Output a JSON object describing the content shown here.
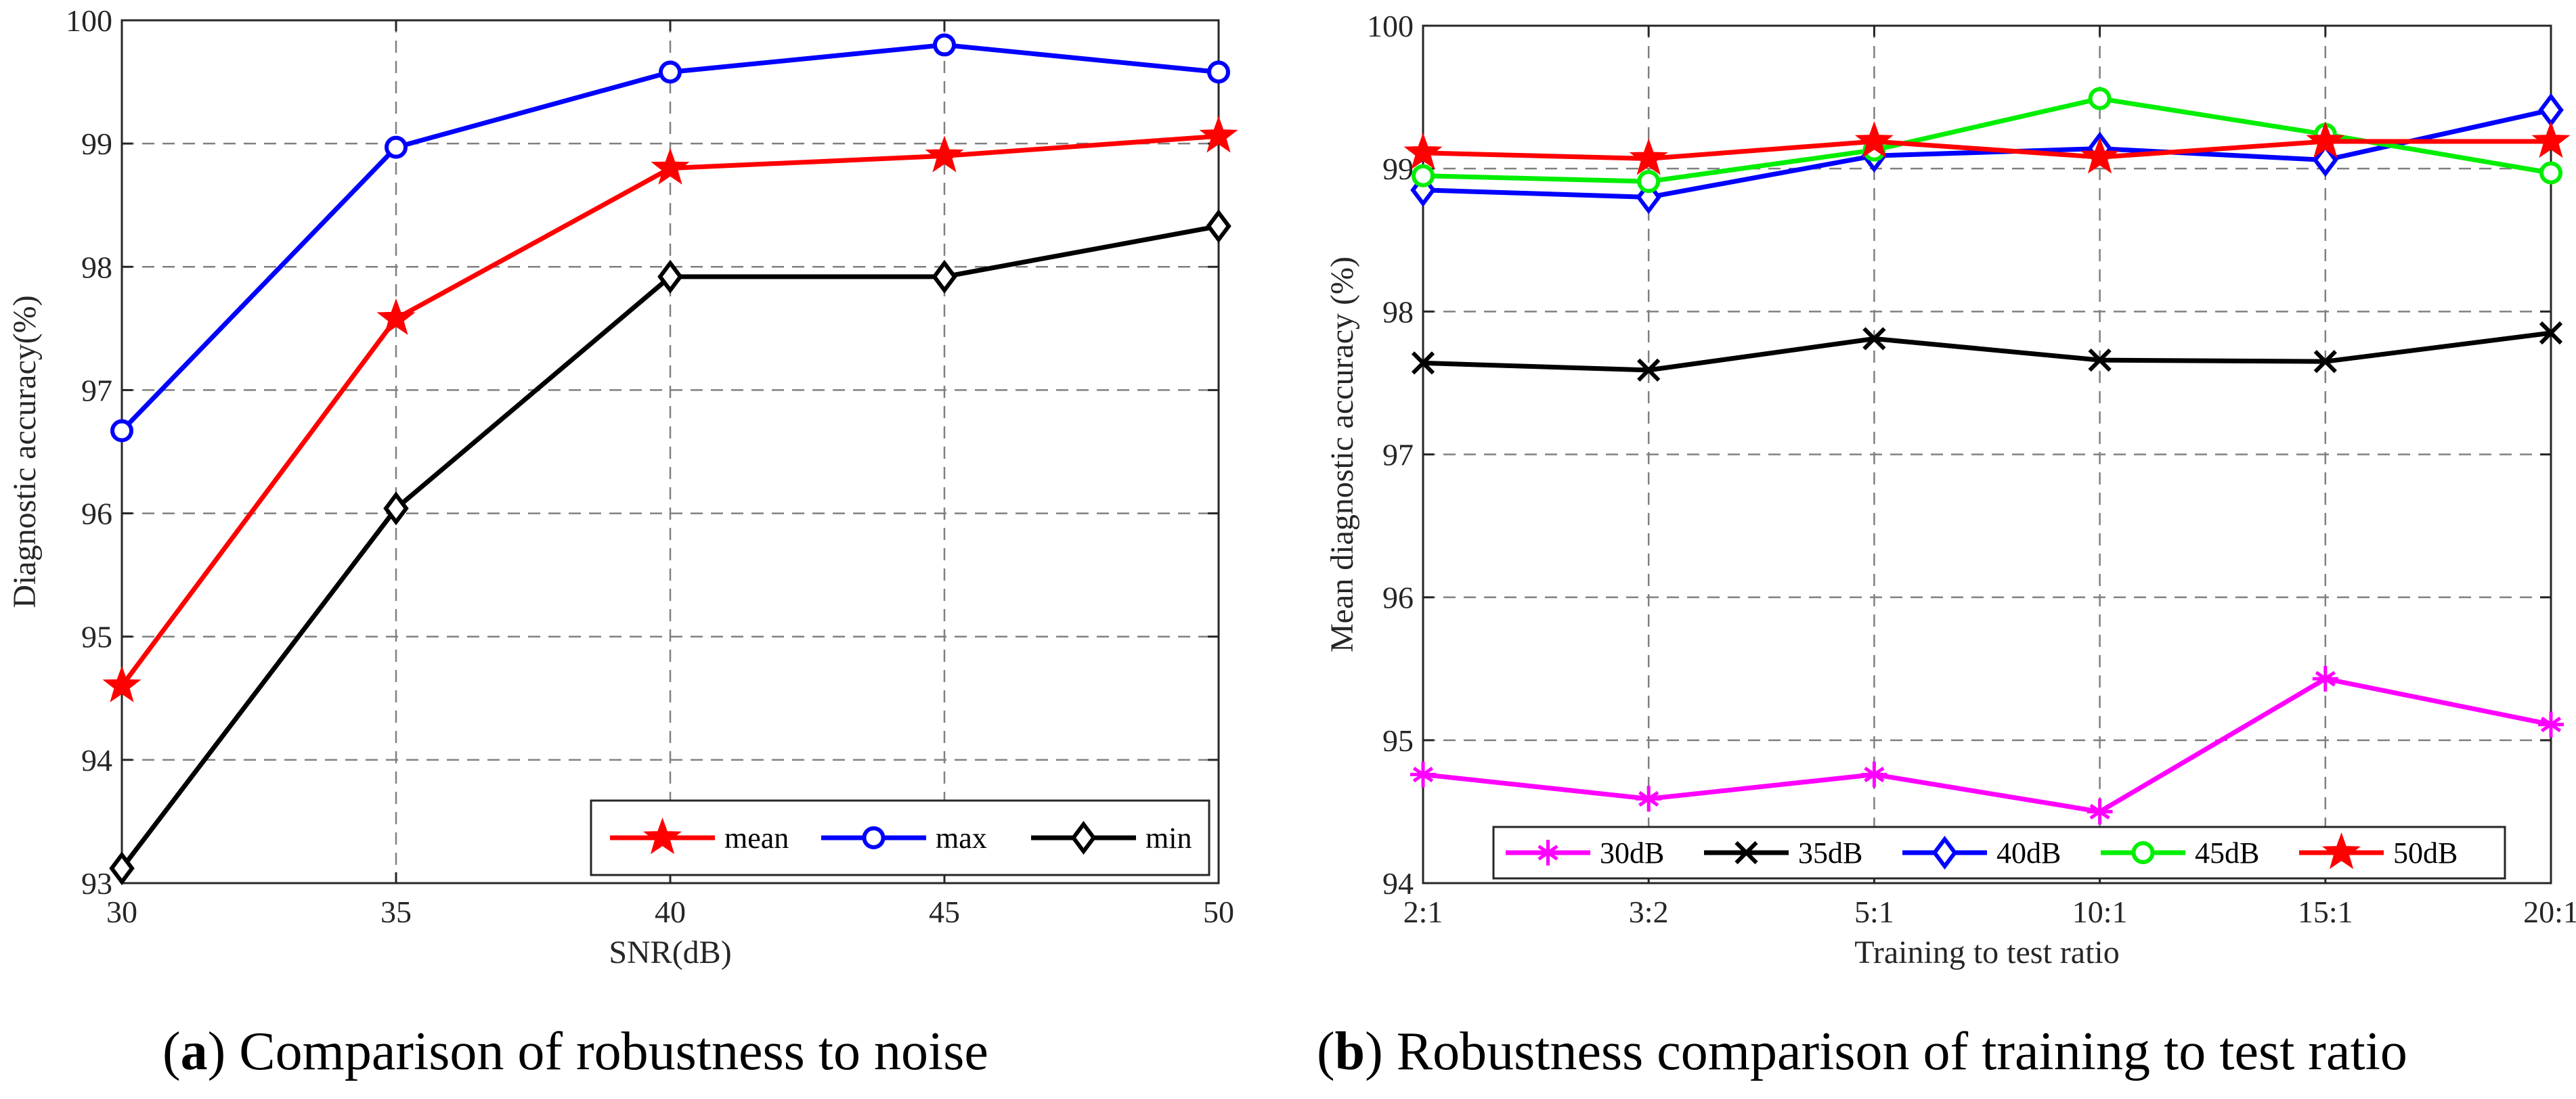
{
  "figure": {
    "captions": [
      {
        "letter": "a",
        "text": ") Comparison of robustness to noise"
      },
      {
        "letter": "b",
        "text": ") Robustness comparison of training to test ratio"
      }
    ]
  },
  "chart_data": [
    {
      "type": "line",
      "title": "",
      "xlabel": "SNR(dB)",
      "ylabel": "Diagnostic accuracy(%)",
      "x": [
        30,
        35,
        40,
        45,
        50
      ],
      "xlim": [
        30,
        50
      ],
      "ylim": [
        93,
        100
      ],
      "xticks": [
        "30",
        "35",
        "40",
        "45",
        "50"
      ],
      "yticks": [
        "93",
        "94",
        "95",
        "96",
        "97",
        "98",
        "99",
        "100"
      ],
      "grid": true,
      "legend_position": "bottom-right",
      "legend_layout": "horizontal",
      "series": [
        {
          "name": "mean",
          "color": "#ff0000",
          "marker": "star",
          "values": [
            94.6,
            97.58,
            98.8,
            98.9,
            99.06
          ]
        },
        {
          "name": "max",
          "color": "#0000ff",
          "marker": "circle",
          "values": [
            96.67,
            98.97,
            99.58,
            99.8,
            99.58
          ]
        },
        {
          "name": "min",
          "color": "#000000",
          "marker": "diamond",
          "values": [
            93.12,
            96.04,
            97.92,
            97.92,
            98.33
          ]
        }
      ]
    },
    {
      "type": "line",
      "title": "",
      "xlabel": "Training to test ratio",
      "ylabel": "Mean diagnostic accuracy (%)",
      "categories": [
        "2:1",
        "3:2",
        "5:1",
        "10:1",
        "15:1",
        "20:1"
      ],
      "ylim": [
        94,
        100
      ],
      "yticks": [
        "94",
        "95",
        "96",
        "97",
        "98",
        "99",
        "100"
      ],
      "grid": true,
      "legend_position": "bottom",
      "legend_layout": "horizontal",
      "series": [
        {
          "name": "30dB",
          "color": "#ff00ff",
          "marker": "asterisk",
          "values": [
            94.76,
            94.59,
            94.76,
            94.5,
            95.43,
            95.11
          ]
        },
        {
          "name": "35dB",
          "color": "#000000",
          "marker": "x",
          "values": [
            97.64,
            97.59,
            97.81,
            97.66,
            97.65,
            97.85
          ]
        },
        {
          "name": "40dB",
          "color": "#0000ff",
          "marker": "diamond",
          "values": [
            98.85,
            98.8,
            99.09,
            99.14,
            99.06,
            99.41
          ]
        },
        {
          "name": "45dB",
          "color": "#00ee00",
          "marker": "circle",
          "values": [
            98.95,
            98.91,
            99.13,
            99.49,
            99.24,
            98.97
          ]
        },
        {
          "name": "50dB",
          "color": "#ff0000",
          "marker": "star",
          "values": [
            99.11,
            99.07,
            99.19,
            99.08,
            99.19,
            99.19
          ]
        }
      ]
    }
  ]
}
